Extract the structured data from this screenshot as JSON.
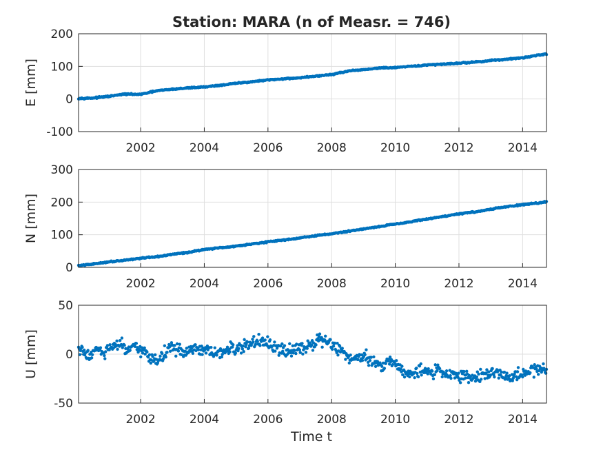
{
  "chart_data": {
    "type": "scatter",
    "title": "Station: MARA (n of Measr. = 746)",
    "xlabel": "Time t",
    "n_measurements": 746,
    "marker_color": "#0072BD",
    "grid": true,
    "x_range": [
      2000.05,
      2014.75
    ],
    "x_ticks": [
      "2002",
      "2004",
      "2006",
      "2008",
      "2010",
      "2012",
      "2014"
    ],
    "panels": [
      {
        "component": "E",
        "ylabel": "E [mm]",
        "ylim": [
          -100,
          200
        ],
        "y_ticks": [
          "-100",
          "0",
          "100",
          "200"
        ],
        "points": [
          [
            2000.05,
            2
          ],
          [
            2000.5,
            3
          ],
          [
            2001.0,
            8
          ],
          [
            2001.5,
            15
          ],
          [
            2002.0,
            14
          ],
          [
            2002.5,
            25
          ],
          [
            2003.0,
            30
          ],
          [
            2003.5,
            34
          ],
          [
            2004.0,
            37
          ],
          [
            2004.5,
            42
          ],
          [
            2005.0,
            48
          ],
          [
            2005.5,
            53
          ],
          [
            2006.0,
            58
          ],
          [
            2006.5,
            62
          ],
          [
            2007.0,
            65
          ],
          [
            2007.5,
            70
          ],
          [
            2008.0,
            75
          ],
          [
            2008.5,
            85
          ],
          [
            2009.0,
            90
          ],
          [
            2009.5,
            95
          ],
          [
            2010.0,
            96
          ],
          [
            2010.5,
            100
          ],
          [
            2011.0,
            104
          ],
          [
            2011.5,
            107
          ],
          [
            2012.0,
            110
          ],
          [
            2012.5,
            113
          ],
          [
            2013.0,
            118
          ],
          [
            2013.5,
            122
          ],
          [
            2014.0,
            126
          ],
          [
            2014.5,
            135
          ],
          [
            2014.75,
            138
          ]
        ]
      },
      {
        "component": "N",
        "ylabel": "N [mm]",
        "ylim": [
          0,
          300
        ],
        "y_ticks": [
          "0",
          "100",
          "200",
          "300"
        ],
        "points": [
          [
            2000.05,
            5
          ],
          [
            2000.5,
            10
          ],
          [
            2001.0,
            17
          ],
          [
            2001.5,
            22
          ],
          [
            2002.0,
            28
          ],
          [
            2002.5,
            32
          ],
          [
            2003.0,
            40
          ],
          [
            2003.5,
            46
          ],
          [
            2004.0,
            55
          ],
          [
            2004.5,
            60
          ],
          [
            2005.0,
            65
          ],
          [
            2005.5,
            72
          ],
          [
            2006.0,
            78
          ],
          [
            2006.5,
            84
          ],
          [
            2007.0,
            90
          ],
          [
            2007.5,
            97
          ],
          [
            2008.0,
            103
          ],
          [
            2008.5,
            110
          ],
          [
            2009.0,
            118
          ],
          [
            2009.5,
            125
          ],
          [
            2010.0,
            133
          ],
          [
            2010.5,
            140
          ],
          [
            2011.0,
            148
          ],
          [
            2011.5,
            156
          ],
          [
            2012.0,
            164
          ],
          [
            2012.5,
            170
          ],
          [
            2013.0,
            178
          ],
          [
            2013.5,
            186
          ],
          [
            2014.0,
            192
          ],
          [
            2014.5,
            197
          ],
          [
            2014.75,
            202
          ]
        ]
      },
      {
        "component": "U",
        "ylabel": "U [mm]",
        "ylim": [
          -50,
          50
        ],
        "y_ticks": [
          "-50",
          "0",
          "50"
        ],
        "points": [
          [
            2000.05,
            5
          ],
          [
            2000.2,
            2
          ],
          [
            2000.4,
            -2
          ],
          [
            2000.6,
            6
          ],
          [
            2000.8,
            0
          ],
          [
            2001.0,
            5
          ],
          [
            2001.2,
            8
          ],
          [
            2001.4,
            10
          ],
          [
            2001.6,
            3
          ],
          [
            2001.8,
            6
          ],
          [
            2002.0,
            4
          ],
          [
            2002.2,
            0
          ],
          [
            2002.4,
            -5
          ],
          [
            2002.6,
            -6
          ],
          [
            2002.8,
            3
          ],
          [
            2003.0,
            7
          ],
          [
            2003.2,
            5
          ],
          [
            2003.4,
            0
          ],
          [
            2003.6,
            4
          ],
          [
            2003.8,
            5
          ],
          [
            2004.0,
            3
          ],
          [
            2004.2,
            2
          ],
          [
            2004.4,
            0
          ],
          [
            2004.6,
            2
          ],
          [
            2004.8,
            5
          ],
          [
            2005.0,
            5
          ],
          [
            2005.2,
            8
          ],
          [
            2005.4,
            10
          ],
          [
            2005.6,
            12
          ],
          [
            2005.8,
            13
          ],
          [
            2006.0,
            10
          ],
          [
            2006.2,
            6
          ],
          [
            2006.4,
            4
          ],
          [
            2006.6,
            3
          ],
          [
            2006.8,
            5
          ],
          [
            2007.0,
            8
          ],
          [
            2007.2,
            9
          ],
          [
            2007.4,
            7
          ],
          [
            2007.6,
            14
          ],
          [
            2007.8,
            15
          ],
          [
            2008.0,
            10
          ],
          [
            2008.2,
            6
          ],
          [
            2008.4,
            0
          ],
          [
            2008.6,
            -5
          ],
          [
            2008.8,
            -3
          ],
          [
            2009.0,
            0
          ],
          [
            2009.2,
            -5
          ],
          [
            2009.4,
            -10
          ],
          [
            2009.6,
            -12
          ],
          [
            2009.8,
            -5
          ],
          [
            2010.0,
            -10
          ],
          [
            2010.2,
            -16
          ],
          [
            2010.4,
            -18
          ],
          [
            2010.6,
            -20
          ],
          [
            2010.8,
            -17
          ],
          [
            2011.0,
            -19
          ],
          [
            2011.2,
            -18
          ],
          [
            2011.4,
            -16
          ],
          [
            2011.6,
            -20
          ],
          [
            2011.8,
            -22
          ],
          [
            2012.0,
            -21
          ],
          [
            2012.2,
            -23
          ],
          [
            2012.4,
            -24
          ],
          [
            2012.6,
            -22
          ],
          [
            2012.8,
            -20
          ],
          [
            2013.0,
            -20
          ],
          [
            2013.2,
            -18
          ],
          [
            2013.4,
            -22
          ],
          [
            2013.6,
            -25
          ],
          [
            2013.8,
            -22
          ],
          [
            2014.0,
            -20
          ],
          [
            2014.2,
            -18
          ],
          [
            2014.4,
            -15
          ],
          [
            2014.6,
            -16
          ],
          [
            2014.75,
            -14
          ]
        ]
      }
    ]
  }
}
